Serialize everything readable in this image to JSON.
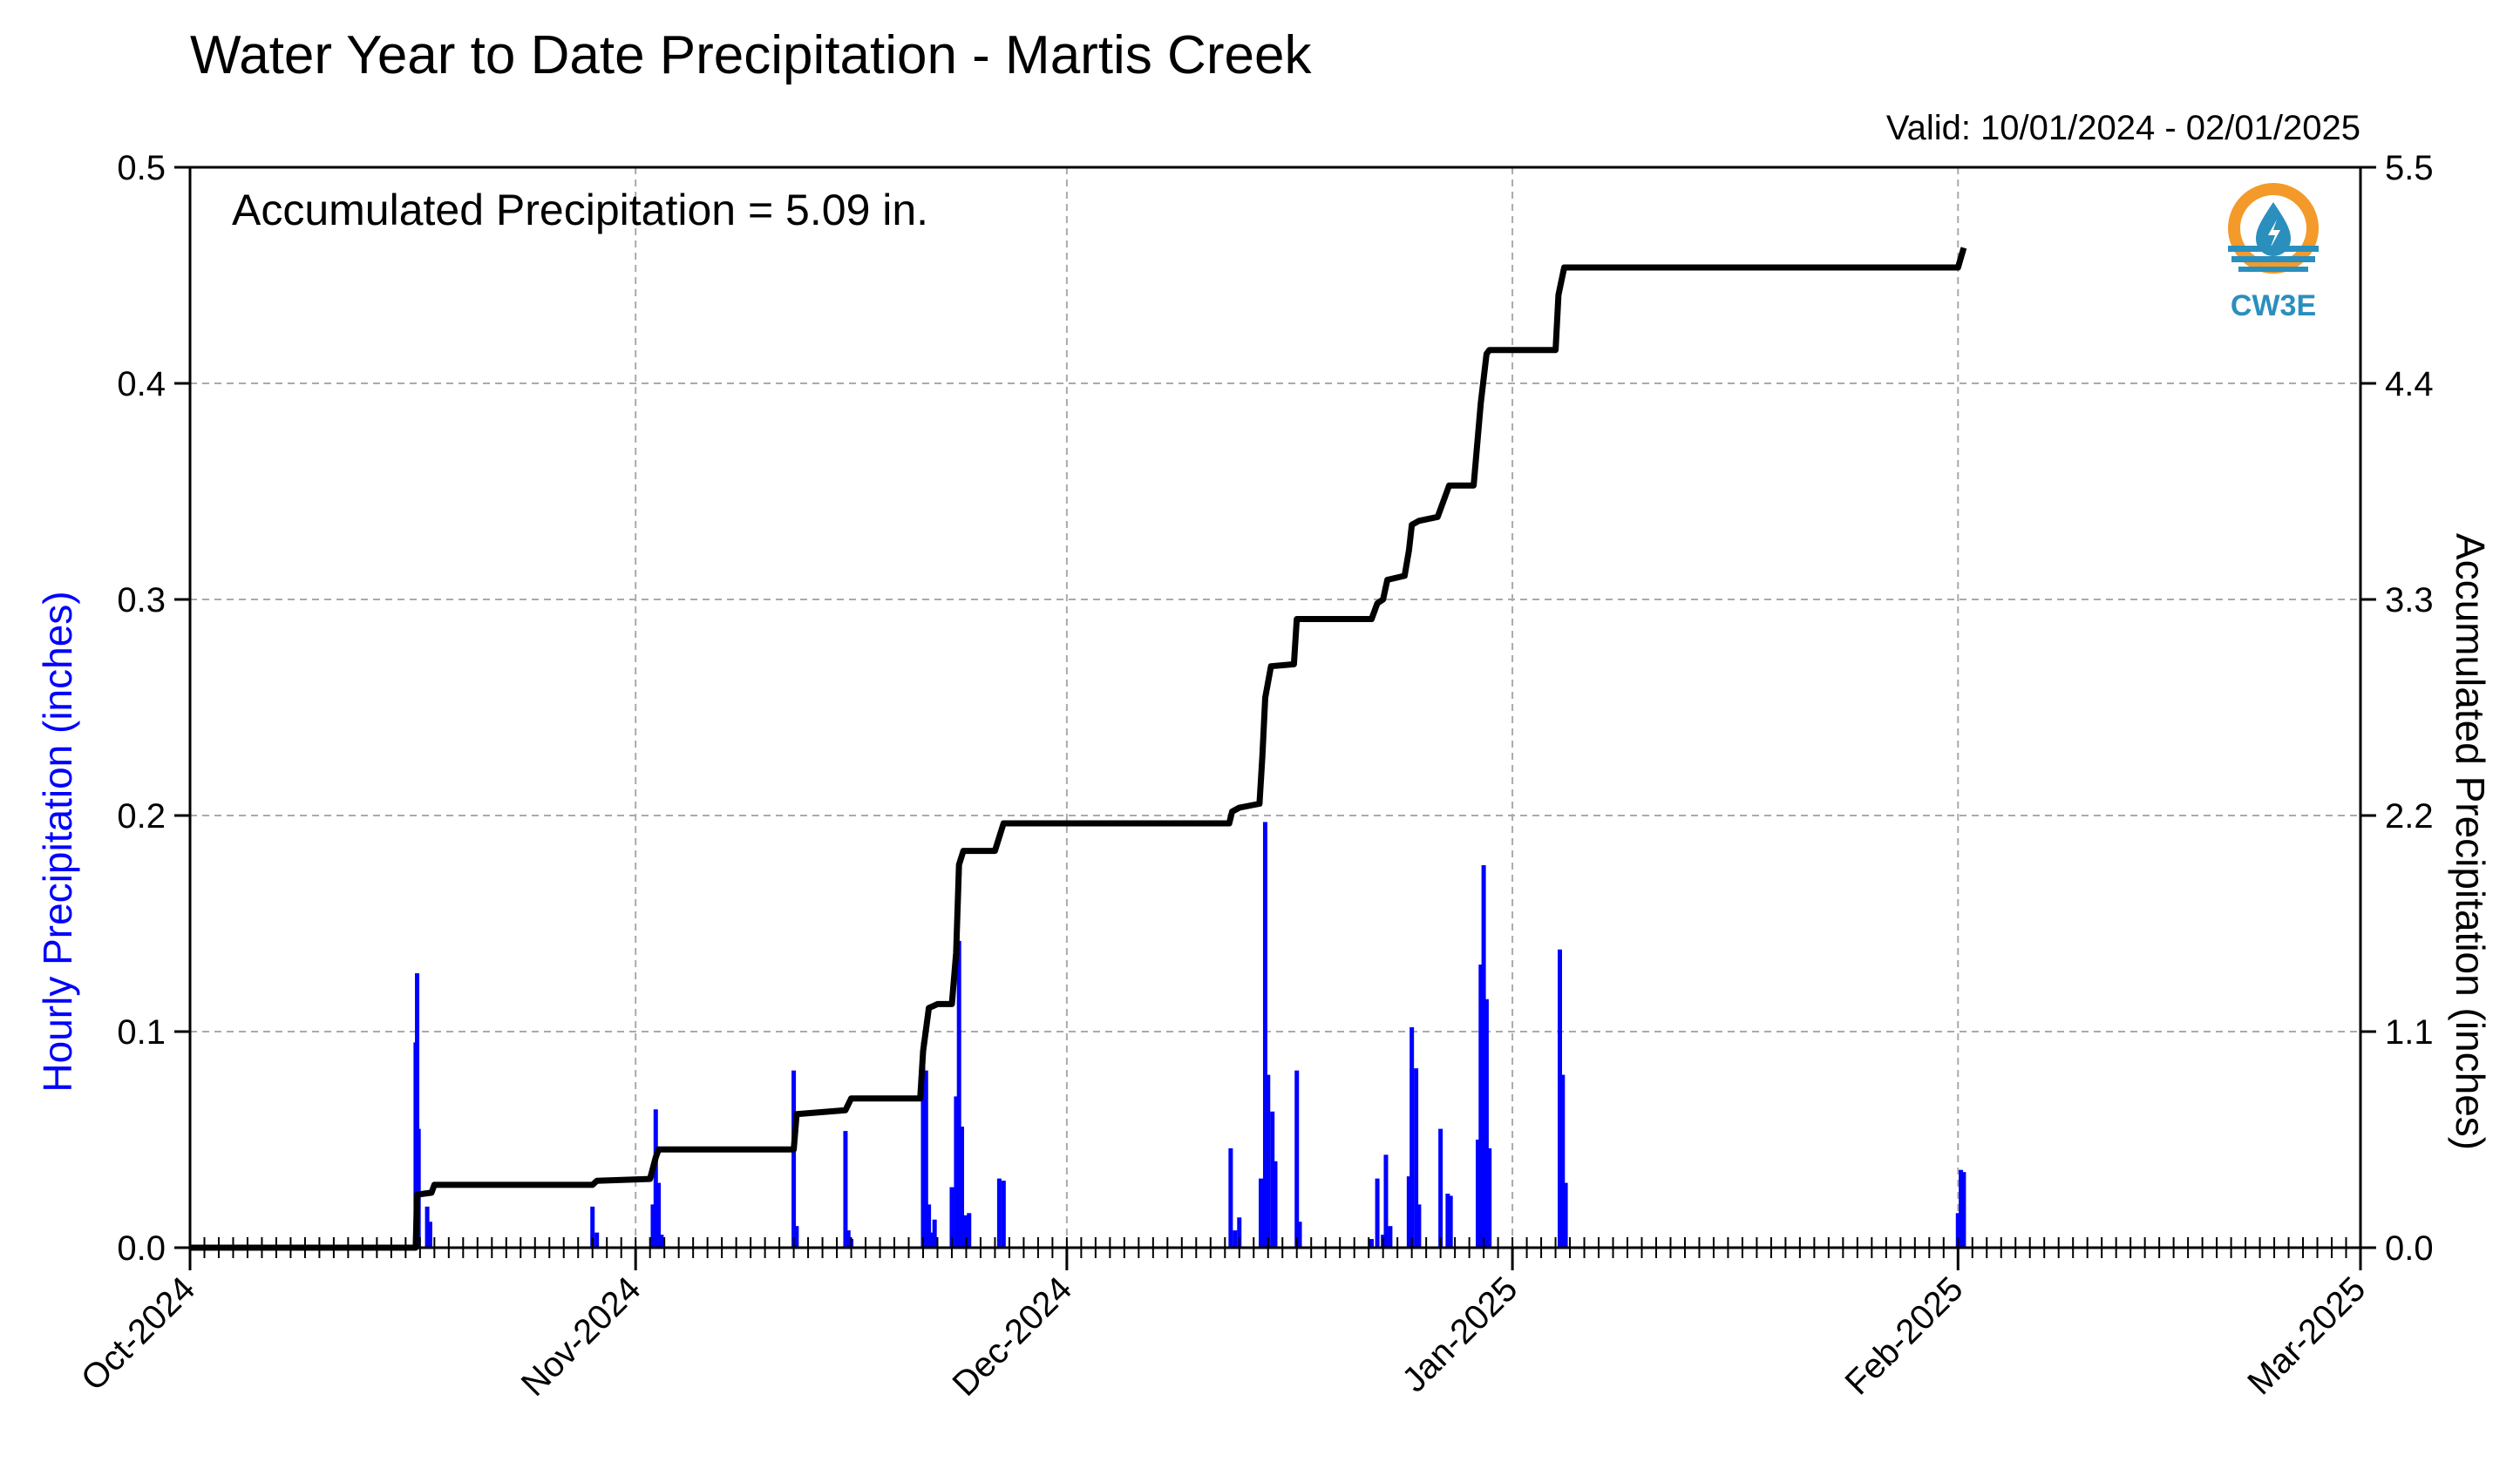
{
  "chart_data": {
    "type": "bar",
    "title": "Water Year to Date Precipitation - Martis Creek",
    "subtitle": "Valid: 10/01/2024 - 02/01/2025",
    "annotation": "Accumulated Precipitation = 5.09 in.",
    "ylabel": "Hourly Precipitation (inches)",
    "y2label": "Accumulated Precipitation (inches)",
    "ylim": [
      0,
      0.5
    ],
    "y2lim": [
      0,
      5.5
    ],
    "yticks": [
      "0.0",
      "0.1",
      "0.2",
      "0.3",
      "0.4",
      "0.5"
    ],
    "y2ticks": [
      "0.0",
      "1.1",
      "2.2",
      "3.3",
      "4.4",
      "5.5"
    ],
    "xlim": [
      "2024-10-01",
      "2025-03-01"
    ],
    "xticks": [
      {
        "label": "Oct-2024",
        "day": 0
      },
      {
        "label": "Nov-2024",
        "day": 31
      },
      {
        "label": "Dec-2024",
        "day": 61
      },
      {
        "label": "Jan-2025",
        "day": 92
      },
      {
        "label": "Feb-2025",
        "day": 123
      },
      {
        "label": "Mar-2025",
        "day": 151
      }
    ],
    "grid": true,
    "colors": {
      "hourly": "#0000ff",
      "accumulated": "#000000",
      "ylabel": "#0000ff"
    },
    "series": [
      {
        "type": "bar",
        "values": [
          [
            15.7,
            0.095
          ],
          [
            15.8,
            0.127
          ],
          [
            15.9,
            0.055
          ],
          [
            16.5,
            0.019
          ],
          [
            16.7,
            0.012
          ],
          [
            28.0,
            0.019
          ],
          [
            28.3,
            0.007
          ],
          [
            32.2,
            0.02
          ],
          [
            32.4,
            0.064
          ],
          [
            32.6,
            0.03
          ],
          [
            32.8,
            0.006
          ],
          [
            42.0,
            0.082
          ],
          [
            42.2,
            0.01
          ],
          [
            45.6,
            0.054
          ],
          [
            45.8,
            0.008
          ],
          [
            46.0,
            0.004
          ],
          [
            51.0,
            0.095
          ],
          [
            51.2,
            0.082
          ],
          [
            51.4,
            0.02
          ],
          [
            51.6,
            0.007
          ],
          [
            51.8,
            0.013
          ],
          [
            53.0,
            0.028
          ],
          [
            53.3,
            0.07
          ],
          [
            53.5,
            0.142
          ],
          [
            53.7,
            0.056
          ],
          [
            54.0,
            0.015
          ],
          [
            54.2,
            0.016
          ],
          [
            56.3,
            0.032
          ],
          [
            56.6,
            0.031
          ],
          [
            72.4,
            0.046
          ],
          [
            72.7,
            0.008
          ],
          [
            73.0,
            0.014
          ],
          [
            74.5,
            0.032
          ],
          [
            74.8,
            0.197
          ],
          [
            75.0,
            0.08
          ],
          [
            75.3,
            0.063
          ],
          [
            75.5,
            0.04
          ],
          [
            77.0,
            0.082
          ],
          [
            77.2,
            0.012
          ],
          [
            82.2,
            0.004
          ],
          [
            82.6,
            0.032
          ],
          [
            83.0,
            0.006
          ],
          [
            83.2,
            0.043
          ],
          [
            83.5,
            0.01
          ],
          [
            84.8,
            0.033
          ],
          [
            85.0,
            0.102
          ],
          [
            85.3,
            0.083
          ],
          [
            85.5,
            0.02
          ],
          [
            87.0,
            0.055
          ],
          [
            87.5,
            0.025
          ],
          [
            87.7,
            0.024
          ],
          [
            89.6,
            0.05
          ],
          [
            89.8,
            0.131
          ],
          [
            90.0,
            0.177
          ],
          [
            90.2,
            0.115
          ],
          [
            90.4,
            0.046
          ],
          [
            95.3,
            0.138
          ],
          [
            95.5,
            0.08
          ],
          [
            95.7,
            0.03
          ],
          [
            123.0,
            0.016
          ],
          [
            123.2,
            0.036
          ],
          [
            123.4,
            0.035
          ]
        ]
      },
      {
        "type": "line",
        "axis": "right",
        "values": [
          [
            0,
            0
          ],
          [
            15.7,
            0
          ],
          [
            15.8,
            0.27
          ],
          [
            16.8,
            0.28
          ],
          [
            17.0,
            0.32
          ],
          [
            28.0,
            0.32
          ],
          [
            28.3,
            0.34
          ],
          [
            32.0,
            0.35
          ],
          [
            32.4,
            0.46
          ],
          [
            32.6,
            0.5
          ],
          [
            42.0,
            0.5
          ],
          [
            42.2,
            0.68
          ],
          [
            45.6,
            0.7
          ],
          [
            46.0,
            0.76
          ],
          [
            50.8,
            0.76
          ],
          [
            51.0,
            1.0
          ],
          [
            51.4,
            1.22
          ],
          [
            52.0,
            1.24
          ],
          [
            53.0,
            1.24
          ],
          [
            53.3,
            1.5
          ],
          [
            53.5,
            1.95
          ],
          [
            53.8,
            2.02
          ],
          [
            56.0,
            2.02
          ],
          [
            56.6,
            2.16
          ],
          [
            72.3,
            2.16
          ],
          [
            72.5,
            2.22
          ],
          [
            73.0,
            2.24
          ],
          [
            74.4,
            2.26
          ],
          [
            74.6,
            2.5
          ],
          [
            74.8,
            2.8
          ],
          [
            75.2,
            2.96
          ],
          [
            76.8,
            2.97
          ],
          [
            77.0,
            3.2
          ],
          [
            82.2,
            3.2
          ],
          [
            82.6,
            3.28
          ],
          [
            83.0,
            3.3
          ],
          [
            83.3,
            3.4
          ],
          [
            84.5,
            3.42
          ],
          [
            84.8,
            3.55
          ],
          [
            85.0,
            3.68
          ],
          [
            85.5,
            3.7
          ],
          [
            86.8,
            3.72
          ],
          [
            87.2,
            3.8
          ],
          [
            87.6,
            3.88
          ],
          [
            89.3,
            3.88
          ],
          [
            89.8,
            4.3
          ],
          [
            90.2,
            4.55
          ],
          [
            90.4,
            4.57
          ],
          [
            95.0,
            4.57
          ],
          [
            95.2,
            4.85
          ],
          [
            95.6,
            4.99
          ],
          [
            123.0,
            4.99
          ],
          [
            123.4,
            5.09
          ]
        ]
      }
    ]
  },
  "logo": {
    "text": "CW3E",
    "colors": {
      "sun": "#f39a2b",
      "water": "#2a8fbd",
      "text": "#2a8fbd"
    }
  }
}
